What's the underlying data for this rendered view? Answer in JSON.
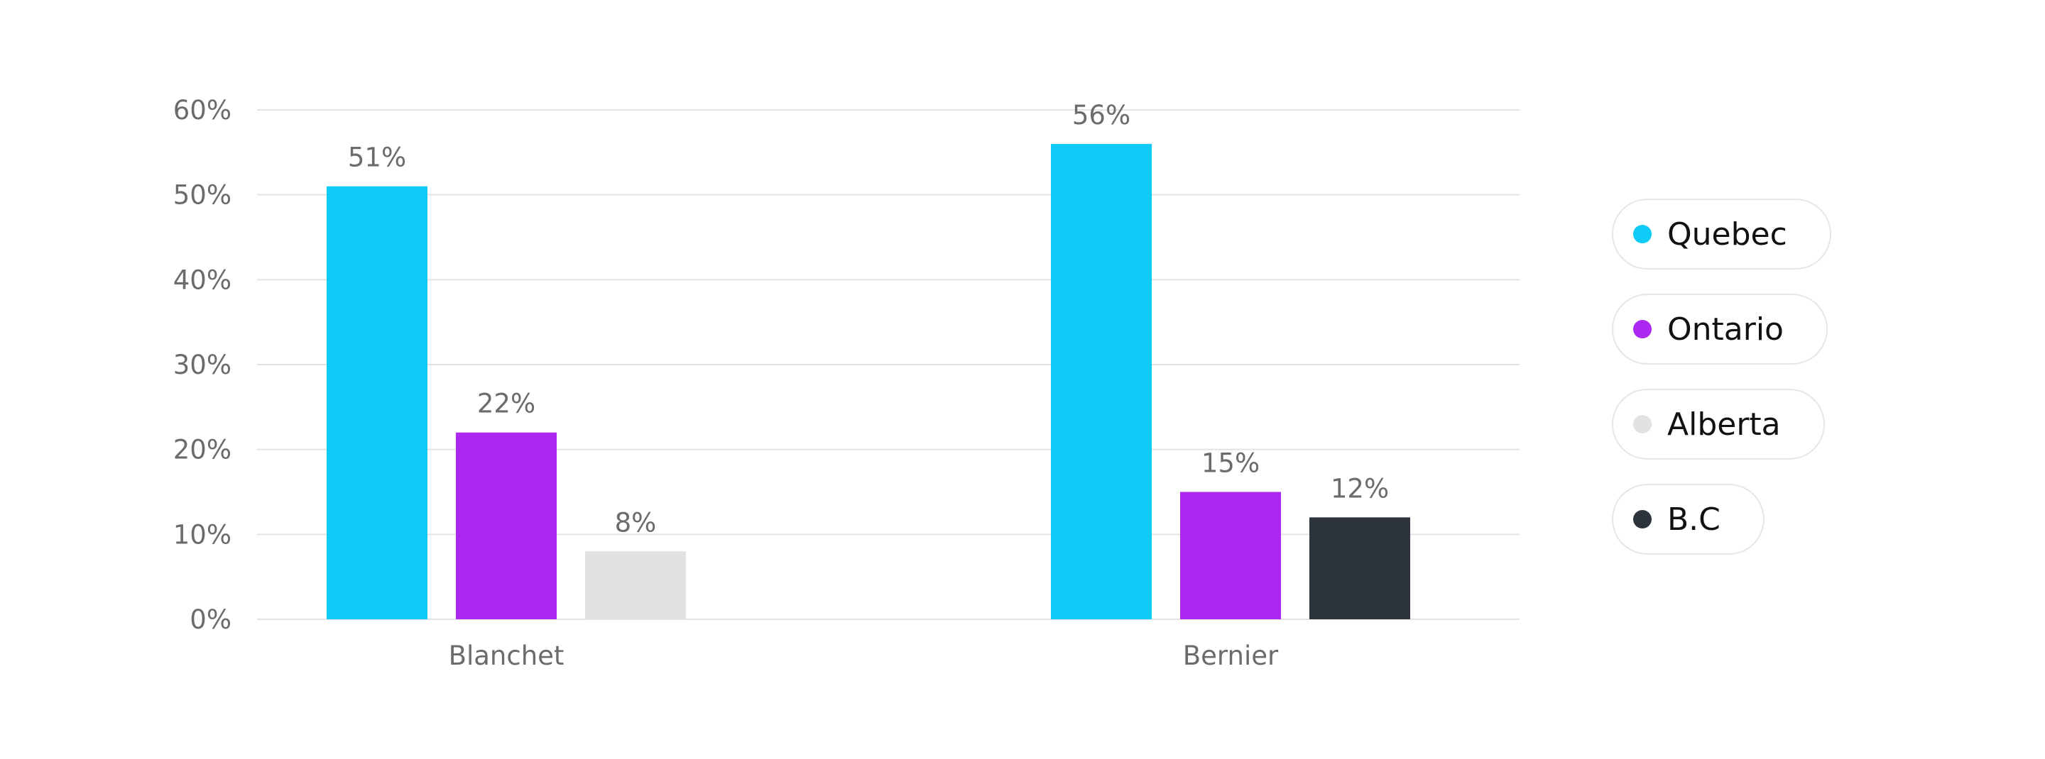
{
  "chart_data": {
    "type": "bar",
    "title": "",
    "xlabel": "",
    "ylabel": "",
    "categories": [
      "Blanchet",
      "Bernier"
    ],
    "ylim": [
      0,
      60
    ],
    "yticks": [
      "0%",
      "10%",
      "20%",
      "30%",
      "40%",
      "50%",
      "60%"
    ],
    "ytick_values": [
      0,
      10,
      20,
      30,
      40,
      50,
      60
    ],
    "grid": true,
    "legend_position": "right",
    "bars": [
      {
        "category": "Blanchet",
        "series": "Quebec",
        "value": 51,
        "label": "51%",
        "color": "#0ecaf6"
      },
      {
        "category": "Blanchet",
        "series": "Ontario",
        "value": 22,
        "label": "22%",
        "color": "#ac27ef"
      },
      {
        "category": "Blanchet",
        "series": "Alberta",
        "value": 8,
        "label": "8%",
        "color": "#e2e2e2"
      },
      {
        "category": "Bernier",
        "series": "Quebec",
        "value": 56,
        "label": "56%",
        "color": "#0ecaf6"
      },
      {
        "category": "Bernier",
        "series": "Ontario",
        "value": 15,
        "label": "15%",
        "color": "#ac27ef"
      },
      {
        "category": "Bernier",
        "series": "B.C",
        "value": 12,
        "label": "12%",
        "color": "#2c333d"
      }
    ],
    "legend": [
      {
        "name": "Quebec",
        "color": "#0ecaf6"
      },
      {
        "name": "Ontario",
        "color": "#ac27ef"
      },
      {
        "name": "Alberta",
        "color": "#e2e2e2"
      },
      {
        "name": "B.C",
        "color": "#2c333d"
      }
    ]
  }
}
